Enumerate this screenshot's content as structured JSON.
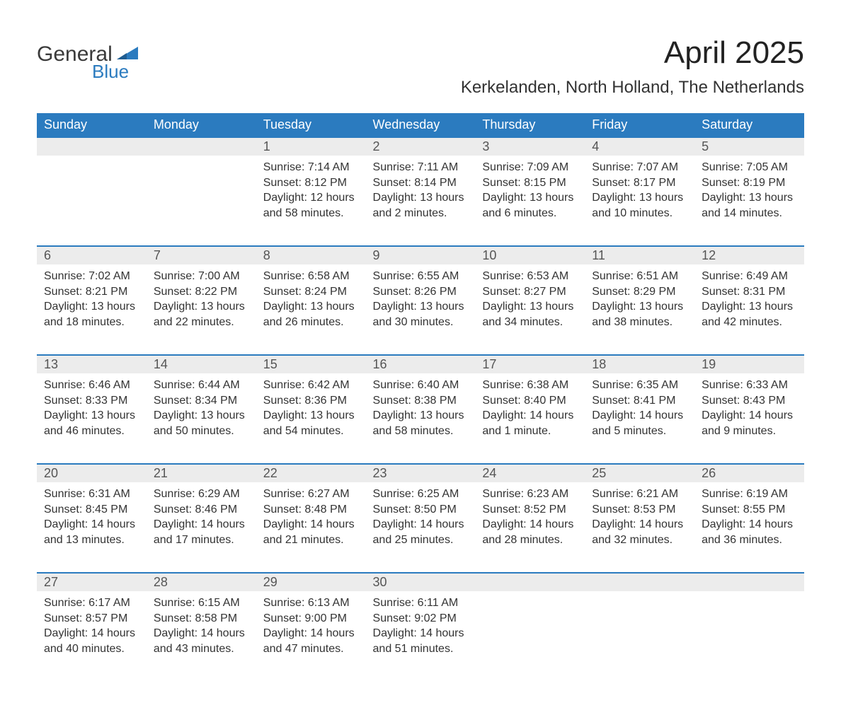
{
  "logo": {
    "word1": "General",
    "word2": "Blue",
    "text_color": "#3a3a3a",
    "accent_color": "#2b7bbf"
  },
  "title": "April 2025",
  "location": "Kerkelanden, North Holland, The Netherlands",
  "colors": {
    "header_bg": "#2b7bbf",
    "header_text": "#ffffff",
    "daynum_bg": "#ececec",
    "row_border": "#2b7bbf",
    "body_text": "#333333",
    "page_bg": "#ffffff"
  },
  "typography": {
    "title_fontsize": 44,
    "location_fontsize": 24,
    "header_fontsize": 18,
    "daynum_fontsize": 18,
    "data_fontsize": 16
  },
  "weekdays": [
    "Sunday",
    "Monday",
    "Tuesday",
    "Wednesday",
    "Thursday",
    "Friday",
    "Saturday"
  ],
  "weeks": [
    [
      null,
      null,
      {
        "day": "1",
        "sunrise": "Sunrise: 7:14 AM",
        "sunset": "Sunset: 8:12 PM",
        "daylight1": "Daylight: 12 hours",
        "daylight2": "and 58 minutes."
      },
      {
        "day": "2",
        "sunrise": "Sunrise: 7:11 AM",
        "sunset": "Sunset: 8:14 PM",
        "daylight1": "Daylight: 13 hours",
        "daylight2": "and 2 minutes."
      },
      {
        "day": "3",
        "sunrise": "Sunrise: 7:09 AM",
        "sunset": "Sunset: 8:15 PM",
        "daylight1": "Daylight: 13 hours",
        "daylight2": "and 6 minutes."
      },
      {
        "day": "4",
        "sunrise": "Sunrise: 7:07 AM",
        "sunset": "Sunset: 8:17 PM",
        "daylight1": "Daylight: 13 hours",
        "daylight2": "and 10 minutes."
      },
      {
        "day": "5",
        "sunrise": "Sunrise: 7:05 AM",
        "sunset": "Sunset: 8:19 PM",
        "daylight1": "Daylight: 13 hours",
        "daylight2": "and 14 minutes."
      }
    ],
    [
      {
        "day": "6",
        "sunrise": "Sunrise: 7:02 AM",
        "sunset": "Sunset: 8:21 PM",
        "daylight1": "Daylight: 13 hours",
        "daylight2": "and 18 minutes."
      },
      {
        "day": "7",
        "sunrise": "Sunrise: 7:00 AM",
        "sunset": "Sunset: 8:22 PM",
        "daylight1": "Daylight: 13 hours",
        "daylight2": "and 22 minutes."
      },
      {
        "day": "8",
        "sunrise": "Sunrise: 6:58 AM",
        "sunset": "Sunset: 8:24 PM",
        "daylight1": "Daylight: 13 hours",
        "daylight2": "and 26 minutes."
      },
      {
        "day": "9",
        "sunrise": "Sunrise: 6:55 AM",
        "sunset": "Sunset: 8:26 PM",
        "daylight1": "Daylight: 13 hours",
        "daylight2": "and 30 minutes."
      },
      {
        "day": "10",
        "sunrise": "Sunrise: 6:53 AM",
        "sunset": "Sunset: 8:27 PM",
        "daylight1": "Daylight: 13 hours",
        "daylight2": "and 34 minutes."
      },
      {
        "day": "11",
        "sunrise": "Sunrise: 6:51 AM",
        "sunset": "Sunset: 8:29 PM",
        "daylight1": "Daylight: 13 hours",
        "daylight2": "and 38 minutes."
      },
      {
        "day": "12",
        "sunrise": "Sunrise: 6:49 AM",
        "sunset": "Sunset: 8:31 PM",
        "daylight1": "Daylight: 13 hours",
        "daylight2": "and 42 minutes."
      }
    ],
    [
      {
        "day": "13",
        "sunrise": "Sunrise: 6:46 AM",
        "sunset": "Sunset: 8:33 PM",
        "daylight1": "Daylight: 13 hours",
        "daylight2": "and 46 minutes."
      },
      {
        "day": "14",
        "sunrise": "Sunrise: 6:44 AM",
        "sunset": "Sunset: 8:34 PM",
        "daylight1": "Daylight: 13 hours",
        "daylight2": "and 50 minutes."
      },
      {
        "day": "15",
        "sunrise": "Sunrise: 6:42 AM",
        "sunset": "Sunset: 8:36 PM",
        "daylight1": "Daylight: 13 hours",
        "daylight2": "and 54 minutes."
      },
      {
        "day": "16",
        "sunrise": "Sunrise: 6:40 AM",
        "sunset": "Sunset: 8:38 PM",
        "daylight1": "Daylight: 13 hours",
        "daylight2": "and 58 minutes."
      },
      {
        "day": "17",
        "sunrise": "Sunrise: 6:38 AM",
        "sunset": "Sunset: 8:40 PM",
        "daylight1": "Daylight: 14 hours",
        "daylight2": "and 1 minute."
      },
      {
        "day": "18",
        "sunrise": "Sunrise: 6:35 AM",
        "sunset": "Sunset: 8:41 PM",
        "daylight1": "Daylight: 14 hours",
        "daylight2": "and 5 minutes."
      },
      {
        "day": "19",
        "sunrise": "Sunrise: 6:33 AM",
        "sunset": "Sunset: 8:43 PM",
        "daylight1": "Daylight: 14 hours",
        "daylight2": "and 9 minutes."
      }
    ],
    [
      {
        "day": "20",
        "sunrise": "Sunrise: 6:31 AM",
        "sunset": "Sunset: 8:45 PM",
        "daylight1": "Daylight: 14 hours",
        "daylight2": "and 13 minutes."
      },
      {
        "day": "21",
        "sunrise": "Sunrise: 6:29 AM",
        "sunset": "Sunset: 8:46 PM",
        "daylight1": "Daylight: 14 hours",
        "daylight2": "and 17 minutes."
      },
      {
        "day": "22",
        "sunrise": "Sunrise: 6:27 AM",
        "sunset": "Sunset: 8:48 PM",
        "daylight1": "Daylight: 14 hours",
        "daylight2": "and 21 minutes."
      },
      {
        "day": "23",
        "sunrise": "Sunrise: 6:25 AM",
        "sunset": "Sunset: 8:50 PM",
        "daylight1": "Daylight: 14 hours",
        "daylight2": "and 25 minutes."
      },
      {
        "day": "24",
        "sunrise": "Sunrise: 6:23 AM",
        "sunset": "Sunset: 8:52 PM",
        "daylight1": "Daylight: 14 hours",
        "daylight2": "and 28 minutes."
      },
      {
        "day": "25",
        "sunrise": "Sunrise: 6:21 AM",
        "sunset": "Sunset: 8:53 PM",
        "daylight1": "Daylight: 14 hours",
        "daylight2": "and 32 minutes."
      },
      {
        "day": "26",
        "sunrise": "Sunrise: 6:19 AM",
        "sunset": "Sunset: 8:55 PM",
        "daylight1": "Daylight: 14 hours",
        "daylight2": "and 36 minutes."
      }
    ],
    [
      {
        "day": "27",
        "sunrise": "Sunrise: 6:17 AM",
        "sunset": "Sunset: 8:57 PM",
        "daylight1": "Daylight: 14 hours",
        "daylight2": "and 40 minutes."
      },
      {
        "day": "28",
        "sunrise": "Sunrise: 6:15 AM",
        "sunset": "Sunset: 8:58 PM",
        "daylight1": "Daylight: 14 hours",
        "daylight2": "and 43 minutes."
      },
      {
        "day": "29",
        "sunrise": "Sunrise: 6:13 AM",
        "sunset": "Sunset: 9:00 PM",
        "daylight1": "Daylight: 14 hours",
        "daylight2": "and 47 minutes."
      },
      {
        "day": "30",
        "sunrise": "Sunrise: 6:11 AM",
        "sunset": "Sunset: 9:02 PM",
        "daylight1": "Daylight: 14 hours",
        "daylight2": "and 51 minutes."
      },
      null,
      null,
      null
    ]
  ]
}
